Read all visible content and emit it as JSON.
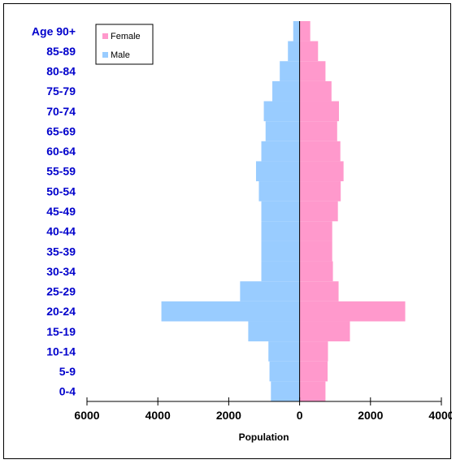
{
  "chart_data": {
    "type": "bar",
    "orientation": "horizontal",
    "layout": "population-pyramid",
    "title": "",
    "xlabel": "Population",
    "ylabel": "",
    "categories": [
      "0-4",
      "5-9",
      "10-14",
      "15-19",
      "20-24",
      "25-29",
      "30-34",
      "35-39",
      "40-44",
      "45-49",
      "50-54",
      "55-59",
      "60-64",
      "65-69",
      "70-74",
      "75-79",
      "80-84",
      "85-89",
      "Age 90+"
    ],
    "series": [
      {
        "name": "Female",
        "color": "#ff99cc",
        "side": "right",
        "values": [
          730,
          790,
          800,
          1420,
          2980,
          1100,
          940,
          920,
          920,
          1080,
          1160,
          1240,
          1150,
          1060,
          1110,
          900,
          730,
          520,
          300
        ]
      },
      {
        "name": "Male",
        "color": "#99ccff",
        "side": "left",
        "values": [
          810,
          850,
          880,
          1450,
          3900,
          1680,
          1080,
          1080,
          1080,
          1080,
          1150,
          1230,
          1080,
          960,
          1010,
          770,
          560,
          330,
          180
        ]
      }
    ],
    "x_axis": {
      "range": [
        -6000,
        4000
      ],
      "ticks": [
        -6000,
        -4000,
        -2000,
        0,
        2000,
        4000
      ],
      "tick_labels": [
        "6000",
        "4000",
        "2000",
        "0",
        "2000",
        "4000"
      ]
    },
    "grid": false,
    "legend": {
      "position": "top-left",
      "entries": [
        "Female",
        "Male"
      ]
    }
  }
}
